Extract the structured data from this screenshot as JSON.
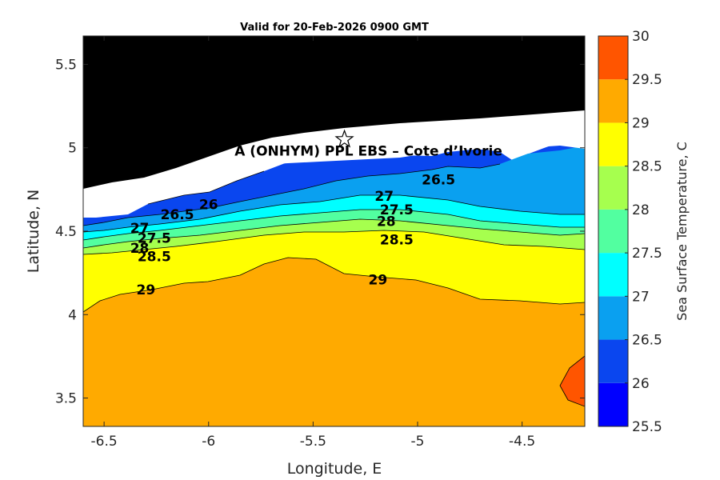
{
  "chart_data": {
    "type": "heatmap",
    "subtype": "filled-contour",
    "title": "Valid for 20-Feb-2026 0900 GMT",
    "xlabel": "Longitude, E",
    "ylabel": "Latitude, N",
    "xlim": [
      -6.6,
      -4.2
    ],
    "ylim": [
      3.33,
      5.67
    ],
    "x_ticks": [
      "-6.5",
      "-6",
      "-5.5",
      "-5",
      "-4.5"
    ],
    "x_tick_values": [
      -6.5,
      -6,
      -5.5,
      -5,
      -4.5
    ],
    "y_ticks": [
      "3.5",
      "4",
      "4.5",
      "5",
      "5.5"
    ],
    "y_tick_values": [
      3.5,
      4,
      4.5,
      5,
      5.5
    ],
    "colorbar": {
      "label": "Sea Surface Temperature, C",
      "min": 25.5,
      "max": 30,
      "ticks": [
        "25.5",
        "26",
        "26.5",
        "27",
        "27.5",
        "28",
        "28.5",
        "29",
        "29.5",
        "30"
      ],
      "tick_values": [
        25.5,
        26,
        26.5,
        27,
        27.5,
        28,
        28.5,
        29,
        29.5,
        30
      ],
      "colors": [
        "#0000ff",
        "#0a46ef",
        "#0aa0f0",
        "#00ffff",
        "#52ffa0",
        "#a6ff4e",
        "#ffff00",
        "#ffaa00",
        "#ff5500"
      ]
    },
    "land_color": "#000000",
    "nodata_color": "#ffffff",
    "contour_levels": [
      26,
      26.5,
      27,
      27.5,
      28,
      28.5,
      29
    ],
    "contour_labels": [
      {
        "text": "26",
        "lon": -6.0,
        "lat": 4.66
      },
      {
        "text": "26.5",
        "lon": -6.15,
        "lat": 4.6
      },
      {
        "text": "26.5",
        "lon": -4.9,
        "lat": 4.81
      },
      {
        "text": "27",
        "lon": -6.33,
        "lat": 4.52
      },
      {
        "text": "27",
        "lon": -5.16,
        "lat": 4.71
      },
      {
        "text": "27.5",
        "lon": -6.26,
        "lat": 4.46
      },
      {
        "text": "27.5",
        "lon": -5.1,
        "lat": 4.63
      },
      {
        "text": "28",
        "lon": -6.33,
        "lat": 4.4
      },
      {
        "text": "28",
        "lon": -5.15,
        "lat": 4.56
      },
      {
        "text": "28.5",
        "lon": -6.26,
        "lat": 4.35
      },
      {
        "text": "28.5",
        "lon": -5.1,
        "lat": 4.45
      },
      {
        "text": "29",
        "lon": -6.3,
        "lat": 4.15
      },
      {
        "text": "29",
        "lon": -5.19,
        "lat": 4.21
      }
    ],
    "site": {
      "label": "A (ONHYM) PPL EBS  – Cote d’Ivorie",
      "marker": "star",
      "lon": -5.35,
      "lat": 5.05
    }
  }
}
